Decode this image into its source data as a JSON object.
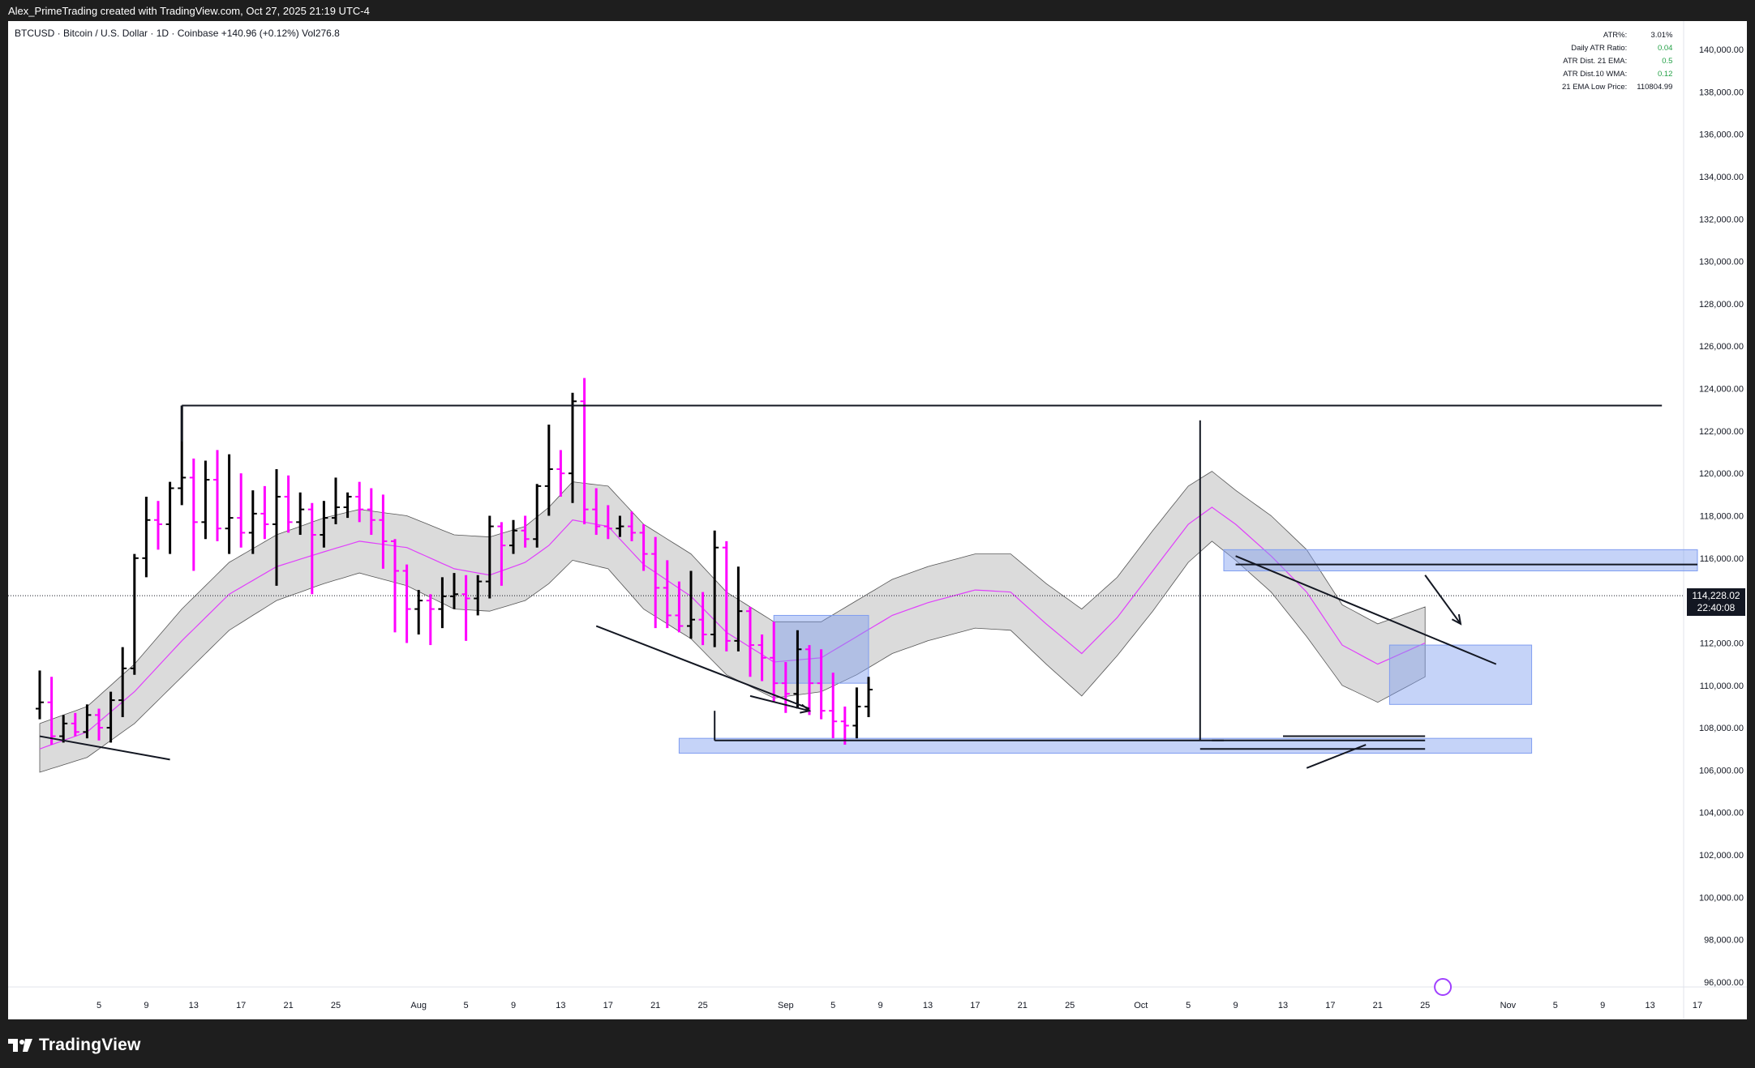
{
  "header": {
    "caption": "Alex_PrimeTrading created with TradingView.com, Oct 27, 2025 21:19 UTC-4"
  },
  "symbol_line": "BTCUSD · Bitcoin / U.S. Dollar · 1D · Coinbase  +140.96 (+0.12%)  Vol276.8",
  "stats": [
    {
      "label": "ATR%:",
      "value": "3.01%",
      "color": "#131722"
    },
    {
      "label": "Daily ATR Ratio:",
      "value": "0.04",
      "color": "#22a045"
    },
    {
      "label": "ATR Dist. 21 EMA:",
      "value": "0.5",
      "color": "#22a045"
    },
    {
      "label": "ATR Dist.10 WMA:",
      "value": "0.12",
      "color": "#22a045"
    },
    {
      "label": "21 EMA Low Price:",
      "value": "110804.99",
      "color": "#131722"
    }
  ],
  "price_badge": {
    "price": "114,228.02",
    "countdown": "22:40:08"
  },
  "footer": {
    "logo_text": "TradingView"
  },
  "colors": {
    "up": "#000000",
    "down": "#ff00ff",
    "zone": "#7f9df0",
    "band": "#bdbdbd",
    "ema": "#e040fb"
  },
  "chart_data": {
    "type": "ohlc",
    "title": "BTCUSD · Bitcoin / U.S. Dollar · 1D · Coinbase",
    "ylim": [
      95000,
      141000
    ],
    "y_ticks": [
      96000,
      98000,
      100000,
      102000,
      104000,
      106000,
      108000,
      110000,
      112000,
      114000,
      116000,
      118000,
      120000,
      122000,
      124000,
      126000,
      128000,
      130000,
      132000,
      134000,
      136000,
      138000,
      140000
    ],
    "y_tick_labels": [
      "96,000.00",
      "98,000.00",
      "100,000.00",
      "102,000.00",
      "104,000.00",
      "106,000.00",
      "108,000.00",
      "110,000.00",
      "112,000.00",
      "114,000.00",
      "116,000.00",
      "118,000.00",
      "120,000.00",
      "122,000.00",
      "124,000.00",
      "126,000.00",
      "128,000.00",
      "130,000.00",
      "132,000.00",
      "134,000.00",
      "136,000.00",
      "138,000.00",
      "140,000.00"
    ],
    "x_labels": [
      {
        "d": 5,
        "t": "5"
      },
      {
        "d": 9,
        "t": "9"
      },
      {
        "d": 13,
        "t": "13"
      },
      {
        "d": 17,
        "t": "17"
      },
      {
        "d": 21,
        "t": "21"
      },
      {
        "d": 25,
        "t": "25"
      },
      {
        "d": 32,
        "t": "Aug"
      },
      {
        "d": 36,
        "t": "5"
      },
      {
        "d": 40,
        "t": "9"
      },
      {
        "d": 44,
        "t": "13"
      },
      {
        "d": 48,
        "t": "17"
      },
      {
        "d": 52,
        "t": "21"
      },
      {
        "d": 56,
        "t": "25"
      },
      {
        "d": 63,
        "t": "Sep"
      },
      {
        "d": 67,
        "t": "5"
      },
      {
        "d": 71,
        "t": "9"
      },
      {
        "d": 75,
        "t": "13"
      },
      {
        "d": 79,
        "t": "17"
      },
      {
        "d": 83,
        "t": "21"
      },
      {
        "d": 87,
        "t": "25"
      },
      {
        "d": 93,
        "t": "Oct"
      },
      {
        "d": 97,
        "t": "5"
      },
      {
        "d": 101,
        "t": "9"
      },
      {
        "d": 105,
        "t": "13"
      },
      {
        "d": 109,
        "t": "17"
      },
      {
        "d": 113,
        "t": "21"
      },
      {
        "d": 117,
        "t": "25"
      },
      {
        "d": 124,
        "t": "Nov"
      },
      {
        "d": 128,
        "t": "5"
      },
      {
        "d": 132,
        "t": "9"
      },
      {
        "d": 136,
        "t": "13"
      },
      {
        "d": 140,
        "t": "17"
      }
    ],
    "current_price": 114228.02,
    "resistance_level": 123200,
    "zones": [
      {
        "d0": 62,
        "d1": 70,
        "p0": 110100,
        "p1": 113300
      },
      {
        "d0": 54,
        "d1": 126,
        "p0": 106800,
        "p1": 107500
      },
      {
        "d0": 100,
        "d1": 140,
        "p0": 115400,
        "p1": 116400
      },
      {
        "d0": 114,
        "d1": 126,
        "p0": 109100,
        "p1": 111900
      }
    ],
    "lines": [
      {
        "d0": 0,
        "p0": 107600,
        "d1": 11,
        "p1": 106500
      },
      {
        "d0": 12,
        "p0": 123200,
        "d1": 137,
        "p1": 123200
      },
      {
        "d0": 12,
        "p0": 123200,
        "d1": 12,
        "p1": 121500
      },
      {
        "d0": 47,
        "p0": 112800,
        "d1": 65,
        "p1": 108900
      },
      {
        "d0": 57,
        "p0": 107400,
        "d1": 100,
        "p1": 107400
      },
      {
        "d0": 57,
        "p0": 107400,
        "d1": 57,
        "p1": 108800
      },
      {
        "d0": 98,
        "p0": 107400,
        "d1": 98,
        "p1": 122500
      },
      {
        "d0": 98,
        "p0": 107000,
        "d1": 117,
        "p1": 107000
      },
      {
        "d0": 99,
        "p0": 107400,
        "d1": 117,
        "p1": 107400
      },
      {
        "d0": 105,
        "p0": 107600,
        "d1": 117,
        "p1": 107600
      },
      {
        "d0": 101,
        "p0": 116100,
        "d1": 123,
        "p1": 111000
      },
      {
        "d0": 101,
        "p0": 115700,
        "d1": 140,
        "p1": 115700
      },
      {
        "d0": 107,
        "p0": 106100,
        "d1": 112,
        "p1": 107200
      }
    ],
    "arrows": [
      {
        "d0": 60,
        "p0": 109500,
        "d1": 65,
        "p1": 108800
      },
      {
        "d0": 117,
        "p0": 115200,
        "d1": 120,
        "p1": 112900
      }
    ],
    "band_keys": [
      [
        0,
        108200,
        105900
      ],
      [
        4,
        109000,
        106600
      ],
      [
        8,
        111000,
        108200
      ],
      [
        12,
        113600,
        110400
      ],
      [
        16,
        115800,
        112600
      ],
      [
        20,
        117100,
        114000
      ],
      [
        24,
        117900,
        114800
      ],
      [
        27,
        118300,
        115300
      ],
      [
        31,
        118000,
        114700
      ],
      [
        35,
        117100,
        113600
      ],
      [
        38,
        117000,
        113500
      ],
      [
        41,
        117500,
        114000
      ],
      [
        43,
        118400,
        114800
      ],
      [
        45,
        119600,
        115900
      ],
      [
        48,
        119400,
        115500
      ],
      [
        51,
        117600,
        113600
      ],
      [
        55,
        116200,
        112200
      ],
      [
        58,
        114400,
        110500
      ],
      [
        62,
        113000,
        109400
      ],
      [
        66,
        113000,
        109700
      ],
      [
        69,
        114000,
        110500
      ],
      [
        72,
        115000,
        111500
      ],
      [
        75,
        115600,
        112100
      ],
      [
        79,
        116200,
        112700
      ],
      [
        82,
        116200,
        112600
      ],
      [
        85,
        114800,
        111000
      ],
      [
        88,
        113600,
        109500
      ],
      [
        91,
        115100,
        111400
      ],
      [
        94,
        117300,
        113500
      ],
      [
        97,
        119400,
        115800
      ],
      [
        99,
        120100,
        116800
      ],
      [
        101,
        119200,
        115900
      ],
      [
        104,
        118000,
        114400
      ],
      [
        107,
        116400,
        112300
      ],
      [
        110,
        113800,
        110000
      ],
      [
        113,
        112900,
        109200
      ],
      [
        117,
        113700,
        110400
      ]
    ],
    "ema_keys": [
      [
        0,
        107000
      ],
      [
        4,
        107800
      ],
      [
        8,
        109700
      ],
      [
        12,
        112100
      ],
      [
        16,
        114300
      ],
      [
        20,
        115600
      ],
      [
        24,
        116300
      ],
      [
        27,
        116800
      ],
      [
        31,
        116500
      ],
      [
        35,
        115500
      ],
      [
        38,
        115200
      ],
      [
        41,
        115800
      ],
      [
        43,
        116600
      ],
      [
        45,
        117800
      ],
      [
        48,
        117500
      ],
      [
        51,
        115700
      ],
      [
        55,
        114200
      ],
      [
        58,
        112500
      ],
      [
        62,
        111100
      ],
      [
        66,
        111300
      ],
      [
        69,
        112300
      ],
      [
        72,
        113300
      ],
      [
        75,
        113900
      ],
      [
        79,
        114500
      ],
      [
        82,
        114400
      ],
      [
        85,
        112900
      ],
      [
        88,
        111500
      ],
      [
        91,
        113200
      ],
      [
        94,
        115400
      ],
      [
        97,
        117600
      ],
      [
        99,
        118400
      ],
      [
        101,
        117600
      ],
      [
        104,
        116100
      ],
      [
        107,
        114400
      ],
      [
        110,
        111900
      ],
      [
        113,
        111000
      ],
      [
        117,
        112000
      ]
    ],
    "bars": [
      {
        "d": 0,
        "o": 108900,
        "h": 110700,
        "l": 108400,
        "c": 109200
      },
      {
        "d": 1,
        "o": 109200,
        "h": 110400,
        "l": 107200,
        "c": 107600
      },
      {
        "d": 2,
        "o": 107600,
        "h": 108600,
        "l": 107300,
        "c": 108200
      },
      {
        "d": 3,
        "o": 108200,
        "h": 108700,
        "l": 107600,
        "c": 107800
      },
      {
        "d": 4,
        "o": 107800,
        "h": 109100,
        "l": 107500,
        "c": 108600
      },
      {
        "d": 5,
        "o": 108600,
        "h": 108900,
        "l": 107400,
        "c": 108000
      },
      {
        "d": 6,
        "o": 108000,
        "h": 109700,
        "l": 107300,
        "c": 109300
      },
      {
        "d": 7,
        "o": 109300,
        "h": 111800,
        "l": 108500,
        "c": 110800
      },
      {
        "d": 8,
        "o": 110800,
        "h": 116200,
        "l": 110500,
        "c": 116000
      },
      {
        "d": 9,
        "o": 116000,
        "h": 118900,
        "l": 115100,
        "c": 117800
      },
      {
        "d": 10,
        "o": 117800,
        "h": 118700,
        "l": 116400,
        "c": 117600
      },
      {
        "d": 11,
        "o": 117600,
        "h": 119600,
        "l": 116200,
        "c": 119300
      },
      {
        "d": 12,
        "o": 119300,
        "h": 123200,
        "l": 118500,
        "c": 119800
      },
      {
        "d": 13,
        "o": 119800,
        "h": 120700,
        "l": 115400,
        "c": 117700
      },
      {
        "d": 14,
        "o": 117700,
        "h": 120600,
        "l": 116900,
        "c": 119700
      },
      {
        "d": 15,
        "o": 119700,
        "h": 121100,
        "l": 116800,
        "c": 117400
      },
      {
        "d": 16,
        "o": 117400,
        "h": 120900,
        "l": 116200,
        "c": 117900
      },
      {
        "d": 17,
        "o": 117900,
        "h": 120000,
        "l": 116500,
        "c": 117200
      },
      {
        "d": 18,
        "o": 117200,
        "h": 119200,
        "l": 116200,
        "c": 118100
      },
      {
        "d": 19,
        "o": 118100,
        "h": 119400,
        "l": 116900,
        "c": 117600
      },
      {
        "d": 20,
        "o": 117600,
        "h": 120200,
        "l": 114700,
        "c": 118900
      },
      {
        "d": 21,
        "o": 118900,
        "h": 119900,
        "l": 117200,
        "c": 117700
      },
      {
        "d": 22,
        "o": 117700,
        "h": 119100,
        "l": 117100,
        "c": 118300
      },
      {
        "d": 23,
        "o": 118300,
        "h": 118600,
        "l": 114300,
        "c": 117100
      },
      {
        "d": 24,
        "o": 117100,
        "h": 118700,
        "l": 116500,
        "c": 117900
      },
      {
        "d": 25,
        "o": 117900,
        "h": 119800,
        "l": 117600,
        "c": 118400
      },
      {
        "d": 26,
        "o": 118400,
        "h": 119100,
        "l": 117900,
        "c": 118900
      },
      {
        "d": 27,
        "o": 118900,
        "h": 119600,
        "l": 117700,
        "c": 118300
      },
      {
        "d": 28,
        "o": 118300,
        "h": 119300,
        "l": 117100,
        "c": 117800
      },
      {
        "d": 29,
        "o": 117800,
        "h": 119000,
        "l": 115500,
        "c": 116800
      },
      {
        "d": 30,
        "o": 116800,
        "h": 116900,
        "l": 112500,
        "c": 115400
      },
      {
        "d": 31,
        "o": 115400,
        "h": 115700,
        "l": 112000,
        "c": 113600
      },
      {
        "d": 32,
        "o": 113600,
        "h": 114500,
        "l": 112400,
        "c": 114000
      },
      {
        "d": 33,
        "o": 114000,
        "h": 114300,
        "l": 111900,
        "c": 113600
      },
      {
        "d": 34,
        "o": 113600,
        "h": 115100,
        "l": 112700,
        "c": 114200
      },
      {
        "d": 35,
        "o": 114200,
        "h": 115300,
        "l": 113600,
        "c": 114300
      },
      {
        "d": 36,
        "o": 114300,
        "h": 115200,
        "l": 112100,
        "c": 114100
      },
      {
        "d": 37,
        "o": 114100,
        "h": 115200,
        "l": 113300,
        "c": 114900
      },
      {
        "d": 38,
        "o": 114900,
        "h": 118000,
        "l": 114100,
        "c": 117500
      },
      {
        "d": 39,
        "o": 117500,
        "h": 117700,
        "l": 114700,
        "c": 116600
      },
      {
        "d": 40,
        "o": 116600,
        "h": 117800,
        "l": 116200,
        "c": 117300
      },
      {
        "d": 41,
        "o": 117300,
        "h": 118000,
        "l": 116500,
        "c": 116900
      },
      {
        "d": 42,
        "o": 116900,
        "h": 119500,
        "l": 116500,
        "c": 119400
      },
      {
        "d": 43,
        "o": 119400,
        "h": 122300,
        "l": 118000,
        "c": 120200
      },
      {
        "d": 44,
        "o": 120200,
        "h": 121100,
        "l": 118900,
        "c": 120000
      },
      {
        "d": 45,
        "o": 120000,
        "h": 123800,
        "l": 118600,
        "c": 123400
      },
      {
        "d": 46,
        "o": 123400,
        "h": 124500,
        "l": 117600,
        "c": 118300
      },
      {
        "d": 47,
        "o": 118300,
        "h": 119300,
        "l": 117100,
        "c": 117500
      },
      {
        "d": 48,
        "o": 117500,
        "h": 118500,
        "l": 116900,
        "c": 117400
      },
      {
        "d": 49,
        "o": 117400,
        "h": 118000,
        "l": 117000,
        "c": 117500
      },
      {
        "d": 50,
        "o": 117500,
        "h": 118200,
        "l": 116800,
        "c": 117200
      },
      {
        "d": 51,
        "o": 117200,
        "h": 117600,
        "l": 115400,
        "c": 116200
      },
      {
        "d": 52,
        "o": 116200,
        "h": 117000,
        "l": 112700,
        "c": 114600
      },
      {
        "d": 53,
        "o": 114600,
        "h": 115900,
        "l": 112700,
        "c": 113300
      },
      {
        "d": 54,
        "o": 113300,
        "h": 114900,
        "l": 112500,
        "c": 112800
      },
      {
        "d": 55,
        "o": 112800,
        "h": 115400,
        "l": 112200,
        "c": 113100
      },
      {
        "d": 56,
        "o": 113100,
        "h": 114400,
        "l": 111900,
        "c": 112400
      },
      {
        "d": 57,
        "o": 112400,
        "h": 117300,
        "l": 111800,
        "c": 116500
      },
      {
        "d": 58,
        "o": 116500,
        "h": 116800,
        "l": 111600,
        "c": 112100
      },
      {
        "d": 59,
        "o": 112100,
        "h": 115600,
        "l": 111600,
        "c": 113500
      },
      {
        "d": 60,
        "o": 113500,
        "h": 113700,
        "l": 110400,
        "c": 111900
      },
      {
        "d": 61,
        "o": 111900,
        "h": 112400,
        "l": 110200,
        "c": 111300
      },
      {
        "d": 62,
        "o": 111300,
        "h": 113000,
        "l": 109200,
        "c": 110100
      },
      {
        "d": 63,
        "o": 110100,
        "h": 111100,
        "l": 108700,
        "c": 109600
      },
      {
        "d": 64,
        "o": 109600,
        "h": 112600,
        "l": 108900,
        "c": 111700
      },
      {
        "d": 65,
        "o": 111700,
        "h": 111900,
        "l": 108600,
        "c": 110100
      },
      {
        "d": 66,
        "o": 110100,
        "h": 111700,
        "l": 108400,
        "c": 108800
      },
      {
        "d": 67,
        "o": 108800,
        "h": 110600,
        "l": 107500,
        "c": 108300
      },
      {
        "d": 68,
        "o": 108300,
        "h": 109000,
        "l": 107200,
        "c": 108100
      },
      {
        "d": 69,
        "o": 108100,
        "h": 109900,
        "l": 107500,
        "c": 109000
      },
      {
        "d": 70,
        "o": 109000,
        "h": 110400,
        "l": 108500,
        "c": 109800
      }
    ]
  }
}
